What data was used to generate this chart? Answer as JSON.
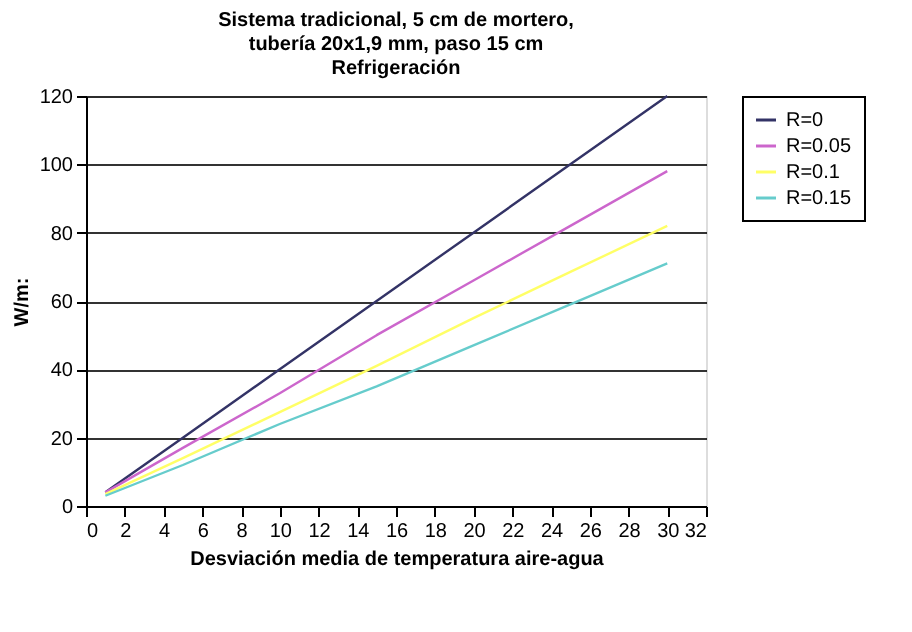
{
  "chart_data": {
    "type": "line",
    "title": [
      "Sistema tradicional, 5 cm de mortero,",
      "tubería 20x1,9 mm, paso 15 cm",
      "Refrigeración"
    ],
    "xlabel": "Desviación media de temperatura aire-agua",
    "ylabel": "W/m:",
    "x": [
      1,
      5,
      10,
      15,
      20,
      25,
      30
    ],
    "series": [
      {
        "name": "R=0",
        "color": "#333366",
        "values": [
          4,
          20,
          40,
          60,
          80,
          100,
          120
        ]
      },
      {
        "name": "R=0.05",
        "color": "#cc66cc",
        "values": [
          4,
          17,
          33,
          50,
          66,
          82,
          98
        ]
      },
      {
        "name": "R=0.1",
        "color": "#ffff66",
        "values": [
          3.5,
          14,
          27.5,
          41,
          55,
          68.5,
          82
        ]
      },
      {
        "name": "R=0.15",
        "color": "#66cccc",
        "values": [
          3,
          12,
          24,
          35,
          47,
          59,
          71
        ]
      }
    ],
    "xlim": [
      0,
      32
    ],
    "xticks": [
      0,
      2,
      4,
      6,
      8,
      10,
      12,
      14,
      16,
      18,
      20,
      22,
      24,
      26,
      28,
      30,
      32
    ],
    "ylim": [
      0,
      120
    ],
    "yticks": [
      0,
      20,
      40,
      60,
      80,
      100,
      120
    ],
    "grid": "y",
    "legend": "right",
    "marker": "none",
    "line_style": "solid"
  }
}
